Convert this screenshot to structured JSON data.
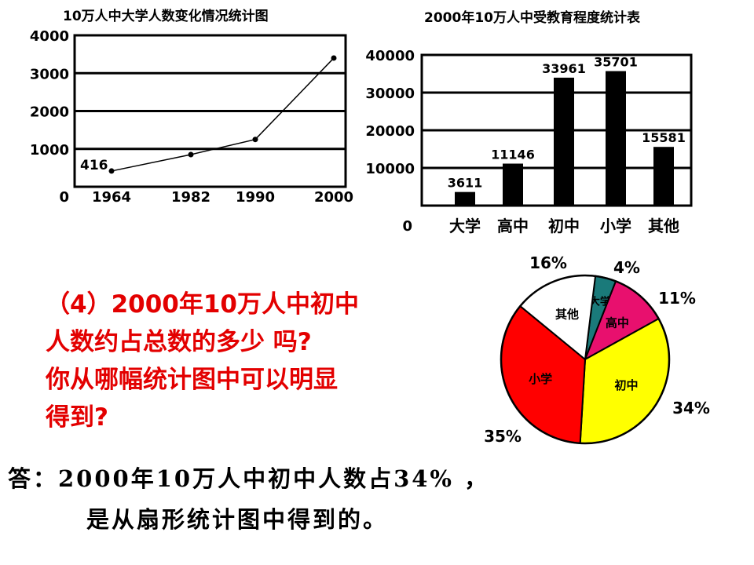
{
  "chart_data": [
    {
      "type": "line",
      "title": "10万人中大学人数变化情况统计图",
      "x": [
        "1964",
        "1982",
        "1990",
        "2000"
      ],
      "values": [
        416,
        850,
        1250,
        3400
      ],
      "point_labels": [
        "416",
        "",
        "",
        ""
      ],
      "y_ticks": [
        "0",
        "1000",
        "2000",
        "3000",
        "4000"
      ],
      "ylim": [
        0,
        4000
      ],
      "grid": true
    },
    {
      "type": "bar",
      "title": "2000年10万人中受教育程度统计表",
      "categories": [
        "大学",
        "高中",
        "初中",
        "小学",
        "其他"
      ],
      "values": [
        3611,
        11146,
        33961,
        35701,
        15581
      ],
      "value_labels": [
        "3611",
        "11146",
        "33961",
        "35701",
        "15581"
      ],
      "y_ticks": [
        "0",
        "10000",
        "20000",
        "30000",
        "40000"
      ],
      "ylim": [
        0,
        40000
      ],
      "grid": true,
      "bar_color": "#000000"
    },
    {
      "type": "pie",
      "slices": [
        {
          "label": "大学",
          "percent": 4,
          "percent_label": "4%",
          "color": "#1a7a7a"
        },
        {
          "label": "高中",
          "percent": 11,
          "percent_label": "11%",
          "color": "#e8106e"
        },
        {
          "label": "初中",
          "percent": 34,
          "percent_label": "34%",
          "color": "#ffff00"
        },
        {
          "label": "小学",
          "percent": 35,
          "percent_label": "35%",
          "color": "#ff0000"
        },
        {
          "label": "其他",
          "percent": 16,
          "percent_label": "16%",
          "color": "#ffffff"
        }
      ]
    }
  ],
  "question": {
    "lines": [
      "（4）2000年10万人中初中",
      "人数约占总数的多少 吗?",
      "你从哪幅统计图中可以明显",
      "得到?"
    ]
  },
  "answer": {
    "line1": "答：2000年10万人中初中人数占34%  ，",
    "line2": "是从扇形统计图中得到的。"
  }
}
